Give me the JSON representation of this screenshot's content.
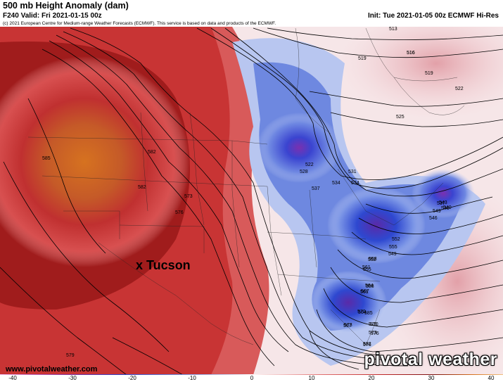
{
  "header": {
    "title": "500 mb Height Anomaly (dam)",
    "valid": "F240 Valid: Fri 2021-01-15 00z",
    "init": "Init: Tue 2021-01-05 00z ECMWF Hi-Res",
    "copyright": "(c) 2021 European Centre for Medium-range Weather Forecasts (ECMWF). This service is based on data and products of the ECMWF."
  },
  "map": {
    "annotation": "x Tucson",
    "contour_labels": [
      "513",
      "516",
      "519",
      "519",
      "522",
      "522",
      "525",
      "528",
      "531",
      "534",
      "537",
      "540",
      "543",
      "546",
      "549",
      "552",
      "555",
      "558",
      "561",
      "564",
      "567",
      "570",
      "573",
      "576",
      "579",
      "582",
      "585",
      "537",
      "540",
      "534",
      "516",
      "549",
      "552",
      "555",
      "558",
      "561",
      "564",
      "567",
      "570",
      "573",
      "576",
      "579",
      "582",
      "573",
      "576",
      "582",
      "585"
    ],
    "anomaly_colors": {
      "positive_max": "#7a1010",
      "positive": "#d02828",
      "neutral": "#ffffff",
      "negative": "#2a3fcc",
      "negative_max": "#5a1a90",
      "core_high": "#d96c1e"
    }
  },
  "colorbar": {
    "ticks": [
      "-40",
      "-30",
      "-20",
      "-10",
      "0",
      "10",
      "20",
      "30",
      "40"
    ]
  },
  "branding": {
    "site": "www.pivotalweather.com",
    "logo": "pivotal weather"
  }
}
